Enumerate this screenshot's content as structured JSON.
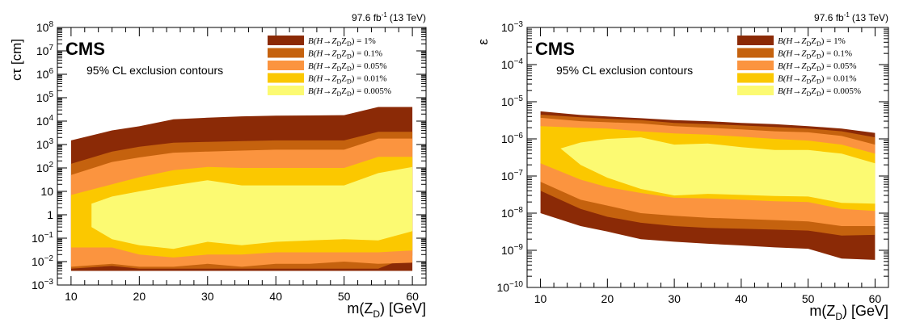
{
  "chart_data": [
    {
      "type": "area",
      "experiment": "CMS",
      "annotation": "95% CL exclusion contours",
      "lumi_value": "97.6 fb",
      "lumi_exp": "-1",
      "lumi_energy": "(13 TeV)",
      "ylabel": "cτ [cm]",
      "xlabel_main": "m(Z",
      "xlabel_sub": "D",
      "xlabel_unit": ") [GeV]",
      "ylog": true,
      "xlim": [
        8,
        62
      ],
      "ylim": [
        0.001,
        100000000
      ],
      "x_ticks": [
        10,
        20,
        30,
        40,
        50,
        60
      ],
      "y_ticks": [
        {
          "v": 0.001,
          "base": "10",
          "exp": "−3"
        },
        {
          "v": 0.01,
          "base": "10",
          "exp": "−2"
        },
        {
          "v": 0.1,
          "base": "10",
          "exp": "−1"
        },
        {
          "v": 1,
          "base": "1",
          "exp": ""
        },
        {
          "v": 10,
          "base": "10",
          "exp": ""
        },
        {
          "v": 100,
          "base": "10",
          "exp": "2"
        },
        {
          "v": 1000,
          "base": "10",
          "exp": "3"
        },
        {
          "v": 10000,
          "base": "10",
          "exp": "4"
        },
        {
          "v": 100000,
          "base": "10",
          "exp": "5"
        },
        {
          "v": 1000000,
          "base": "10",
          "exp": "6"
        },
        {
          "v": 10000000,
          "base": "10",
          "exp": "7"
        },
        {
          "v": 100000000,
          "base": "10",
          "exp": "8"
        }
      ],
      "series": [
        {
          "name": "1%",
          "color": "#8b2a06",
          "x": [
            10,
            16,
            20,
            25,
            30,
            35,
            40,
            45,
            50,
            55,
            60
          ],
          "upper": [
            1500,
            4000,
            6000,
            12000,
            14000,
            16000,
            17000,
            17500,
            18000,
            40000,
            40000
          ],
          "lower": [
            0.004,
            0.004,
            0.004,
            0.004,
            0.004,
            0.004,
            0.004,
            0.004,
            0.004,
            0.004,
            0.004
          ]
        },
        {
          "name": "0.1%",
          "color": "#c5620e",
          "x": [
            10,
            16,
            20,
            25,
            30,
            35,
            40,
            45,
            50,
            55,
            60
          ],
          "upper": [
            150,
            500,
            800,
            1200,
            1300,
            1400,
            1500,
            1500,
            1500,
            3500,
            3500
          ],
          "lower": [
            0.005,
            0.0065,
            0.005,
            0.005,
            0.005,
            0.005,
            0.005,
            0.005,
            0.005,
            0.005,
            0.018
          ]
        },
        {
          "name": "0.05%",
          "color": "#fb943f",
          "x": [
            10,
            16,
            20,
            25,
            30,
            35,
            40,
            45,
            50,
            55,
            60
          ],
          "upper": [
            50,
            180,
            280,
            450,
            500,
            550,
            600,
            600,
            600,
            1800,
            1800
          ],
          "lower": [
            0.006,
            0.008,
            0.006,
            0.006,
            0.008,
            0.006,
            0.008,
            0.008,
            0.01,
            0.008,
            0.009
          ]
        },
        {
          "name": "0.01%",
          "color": "#fbc800",
          "x": [
            10,
            16,
            20,
            25,
            30,
            35,
            40,
            45,
            50,
            55,
            60
          ],
          "upper": [
            7,
            20,
            40,
            80,
            110,
            100,
            100,
            100,
            100,
            300,
            300
          ],
          "lower": [
            0.04,
            0.04,
            0.02,
            0.015,
            0.02,
            0.02,
            0.025,
            0.025,
            0.025,
            0.025,
            0.03
          ]
        },
        {
          "name": "0.005%",
          "color": "#fcfa72",
          "x": [
            13,
            13,
            16,
            20,
            25,
            30,
            35,
            40,
            45,
            50,
            55,
            60
          ],
          "upper": [
            0.3,
            3,
            6,
            10,
            18,
            30,
            18,
            18,
            18,
            18,
            60,
            110
          ],
          "lower": [
            0.3,
            0.3,
            0.09,
            0.05,
            0.035,
            0.07,
            0.05,
            0.07,
            0.08,
            0.09,
            0.08,
            0.2
          ]
        }
      ],
      "legend_text": "B(H→Z",
      "legend_sub": "D",
      "legend_position": "top-right"
    },
    {
      "type": "area",
      "experiment": "CMS",
      "annotation": "95% CL exclusion contours",
      "lumi_value": "97.6 fb",
      "lumi_exp": "-1",
      "lumi_energy": "(13 TeV)",
      "ylabel": "ε",
      "xlabel_main": "m(Z",
      "xlabel_sub": "D",
      "xlabel_unit": ") [GeV]",
      "ylog": true,
      "xlim": [
        8,
        62
      ],
      "ylim": [
        1e-10,
        0.001
      ],
      "x_ticks": [
        10,
        20,
        30,
        40,
        50,
        60
      ],
      "y_ticks": [
        {
          "v": 1e-10,
          "base": "10",
          "exp": "−10"
        },
        {
          "v": 1e-09,
          "base": "10",
          "exp": "−9"
        },
        {
          "v": 1e-08,
          "base": "10",
          "exp": "−8"
        },
        {
          "v": 1e-07,
          "base": "10",
          "exp": "−7"
        },
        {
          "v": 1e-06,
          "base": "10",
          "exp": "−6"
        },
        {
          "v": 1e-05,
          "base": "10",
          "exp": "−5"
        },
        {
          "v": 0.0001,
          "base": "10",
          "exp": "−4"
        },
        {
          "v": 0.001,
          "base": "10",
          "exp": "−3"
        }
      ],
      "series": [
        {
          "name": "1%",
          "color": "#8b2a06",
          "x": [
            10,
            16,
            20,
            25,
            30,
            35,
            40,
            45,
            50,
            55,
            60
          ],
          "upper": [
            5.5e-06,
            4.4e-06,
            4e-06,
            3.6e-06,
            3.2e-06,
            3e-06,
            2.7e-06,
            2.5e-06,
            2.2e-06,
            1.9e-06,
            1.45e-06
          ],
          "lower": [
            1e-08,
            4.5e-09,
            3.2e-09,
            2e-09,
            1.7e-09,
            1.5e-09,
            1.35e-09,
            1.2e-09,
            1.1e-09,
            6e-10,
            5.5e-10
          ]
        },
        {
          "name": "0.1%",
          "color": "#c5620e",
          "x": [
            10,
            16,
            20,
            25,
            30,
            35,
            40,
            45,
            50,
            55,
            60
          ],
          "upper": [
            4.5e-06,
            3.8e-06,
            3.5e-06,
            3.2e-06,
            2.7e-06,
            2.5e-06,
            2.3e-06,
            2.1e-06,
            1.9e-06,
            1.6e-06,
            1.1e-06
          ],
          "lower": [
            4e-08,
            1.3e-08,
            8e-09,
            5.5e-09,
            4.5e-09,
            4e-09,
            3.8e-09,
            3.6e-09,
            3.4e-09,
            2.5e-09,
            2.6e-09
          ]
        },
        {
          "name": "0.05%",
          "color": "#fb943f",
          "x": [
            10,
            16,
            20,
            25,
            30,
            35,
            40,
            45,
            50,
            55,
            60
          ],
          "upper": [
            3.7e-06,
            3e-06,
            2.8e-06,
            2.6e-06,
            2.2e-06,
            2e-06,
            1.8e-06,
            1.6e-06,
            1.5e-06,
            1.2e-06,
            7e-07
          ],
          "lower": [
            7e-08,
            2.3e-08,
            1.6e-08,
            1e-08,
            8.5e-09,
            7.5e-09,
            7e-09,
            6.5e-09,
            6e-09,
            4.5e-09,
            4.5e-09
          ]
        },
        {
          "name": "0.01%",
          "color": "#fbc800",
          "x": [
            10,
            16,
            20,
            25,
            30,
            35,
            40,
            45,
            50,
            55,
            60
          ],
          "upper": [
            2.2e-06,
            2e-06,
            1.9e-06,
            1.6e-06,
            1.4e-06,
            1.3e-06,
            1.15e-06,
            1e-06,
            9e-07,
            7e-07,
            4e-07
          ],
          "lower": [
            2.2e-07,
            8e-08,
            5e-08,
            3.5e-08,
            2.6e-08,
            2.5e-08,
            2.3e-08,
            2.1e-08,
            2e-08,
            1.3e-08,
            1.15e-08
          ]
        },
        {
          "name": "0.005%",
          "color": "#fcfa72",
          "x": [
            13,
            13,
            16,
            20,
            25,
            30,
            35,
            40,
            45,
            50,
            55,
            60
          ],
          "upper": [
            5.5e-07,
            5.5e-07,
            8e-07,
            1e-06,
            1.1e-06,
            7e-07,
            7.5e-07,
            6e-07,
            5e-07,
            5e-07,
            4e-07,
            2.2e-07
          ],
          "lower": [
            5.5e-07,
            5.5e-07,
            2e-07,
            9e-08,
            4.5e-08,
            3e-08,
            3.3e-08,
            3.1e-08,
            2.9e-08,
            2.8e-08,
            1.9e-08,
            1.8e-08
          ]
        }
      ],
      "legend_text": "B(H→Z",
      "legend_sub": "D",
      "legend_position": "top-right"
    }
  ]
}
